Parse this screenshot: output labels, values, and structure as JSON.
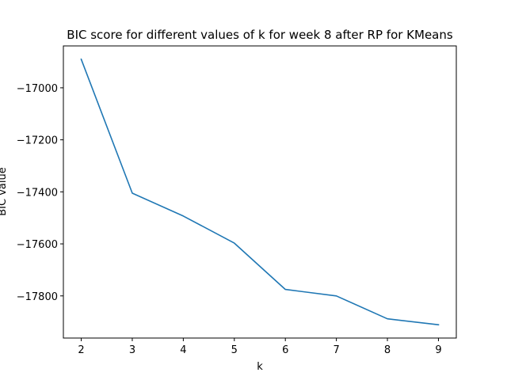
{
  "chart_data": {
    "type": "line",
    "title": "BIC score for different values of k for week 8 after RP for KMeans",
    "xlabel": "k",
    "ylabel": "BIC value",
    "x": [
      2,
      3,
      4,
      5,
      6,
      7,
      8,
      9
    ],
    "series": [
      {
        "values": [
          -16890,
          -17405,
          -17493,
          -17597,
          -17775,
          -17800,
          -17888,
          -17911
        ],
        "color": "#1f77b4"
      }
    ],
    "xlim": [
      1.65,
      9.35
    ],
    "ylim": [
      -17962,
      -16839
    ],
    "xticks": [
      2,
      3,
      4,
      5,
      6,
      7,
      8,
      9
    ],
    "yticks": [
      -17000,
      -17200,
      -17400,
      -17600,
      -17800
    ],
    "ytick_labels": [
      "−17000",
      "−17200",
      "−17400",
      "−17600",
      "−17800"
    ],
    "grid": false,
    "legend": "none"
  }
}
